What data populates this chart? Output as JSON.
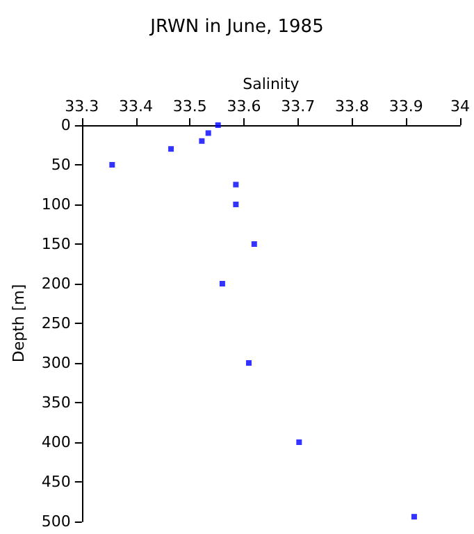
{
  "chart_data": {
    "type": "scatter",
    "title": "JRWN in June, 1985",
    "xlabel": "Salinity",
    "ylabel": "Depth [m]",
    "x": [
      33.552,
      33.534,
      33.522,
      33.465,
      33.356,
      33.585,
      33.585,
      33.619,
      33.56,
      33.609,
      33.702,
      33.915
    ],
    "series": [
      {
        "color": "#0000ff",
        "values": [
          0,
          10,
          20,
          30,
          50,
          75,
          100,
          150,
          200,
          300,
          400,
          494
        ]
      }
    ],
    "xlim": [
      33.3,
      34
    ],
    "xticks": [
      33.3,
      33.4,
      33.5,
      33.6,
      33.7,
      33.8,
      33.9,
      34
    ],
    "ylim": [
      500,
      0
    ],
    "yticks": [
      0,
      50,
      100,
      150,
      200,
      250,
      300,
      350,
      400,
      450,
      500
    ],
    "marker": "square",
    "grid": false
  }
}
